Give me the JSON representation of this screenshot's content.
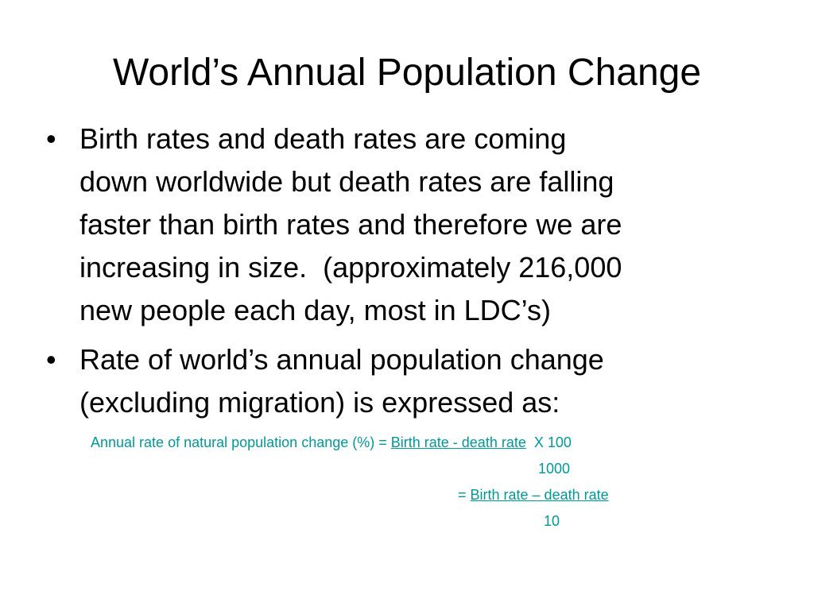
{
  "slide": {
    "title": "World’s Annual Population Change",
    "bullets": [
      {
        "marker": "•",
        "lines": [
          "Birth rates and death rates are coming",
          "down worldwide but death rates are falling",
          "faster than birth rates and therefore we are",
          "increasing in size.  (approximately 216,000",
          "new people each day, most in LDC’s)"
        ]
      },
      {
        "marker": "•",
        "lines": [
          "Rate of world’s annual population change",
          "(excluding migration) is expressed as:"
        ]
      }
    ],
    "formula": {
      "line1_prefix": "Annual rate of natural population change (%) = ",
      "line1_numerator": "Birth rate - death rate",
      "line1_suffix": "  X 100",
      "line2_denominator": "1000",
      "line3_prefix": "= ",
      "line3_numerator": "Birth rate – death rate",
      "line4_denominator": "10"
    },
    "colors": {
      "text": "#000000",
      "formula": "#009999",
      "background": "#ffffff"
    }
  }
}
